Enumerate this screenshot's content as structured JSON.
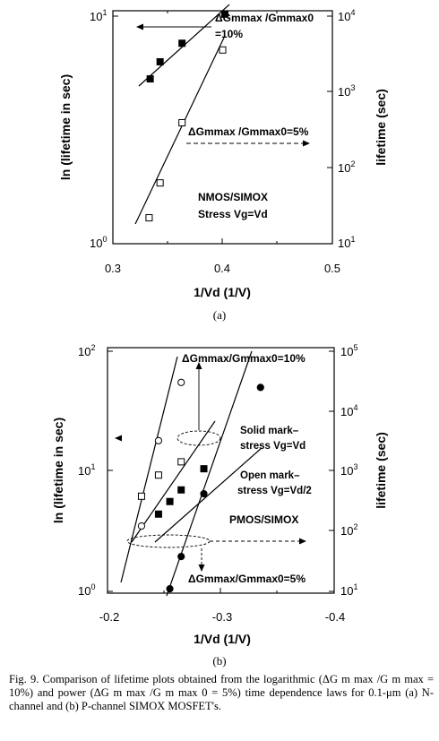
{
  "figure": {
    "panel_a": {
      "label": "(a)",
      "y_axis_left_label": "ln (lifetime in sec)",
      "y_axis_right_label": "lifetime (sec)",
      "x_axis_label": "1/Vd (1/V)",
      "annotation_top_line1": "ΔGmmax /Gmmax0",
      "annotation_top_line2": "=10%",
      "annotation_mid": "ΔGmmax /Gmmax0=5%",
      "device_label": "NMOS/SIMOX",
      "stress_label": "Stress Vg=Vd"
    },
    "panel_b": {
      "label": "(b)",
      "y_axis_left_label": "ln (lifetime in sec)",
      "y_axis_right_label": "lifetime (sec)",
      "x_axis_label": "1/Vd (1/V)",
      "annotation_top": "ΔGmmax/Gmmax0=10%",
      "annotation_bottom": "ΔGmmax/Gmmax0=5%",
      "solid_mark_line1": "Solid mark–",
      "solid_mark_line2": "stress Vg=Vd",
      "open_mark_line1": "Open mark–",
      "open_mark_line2": "stress Vg=Vd/2",
      "device_label": "PMOS/SIMOX"
    },
    "caption": "Fig. 9. Comparison of lifetime plots obtained from the logarithmic (ΔG m max /G m max = 10%) and power (ΔG m max /G m max 0 = 5%) time dependence laws for 0.1-μm (a) N-channel and (b) P-channel SIMOX MOSFET's."
  },
  "chart_data": [
    {
      "type": "scatter",
      "x_scale": "linear",
      "y_scale": "log",
      "xlim": [
        0.3,
        0.5
      ],
      "ylim_left": [
        1,
        10
      ],
      "ylim_right": [
        10,
        10000
      ],
      "x_ticks": [
        "0.3",
        "0.4",
        "0.5"
      ],
      "y_ticks_left": [
        "10^0",
        "10^1"
      ],
      "y_ticks_right": [
        "10^1",
        "10^2",
        "10^3",
        "10^4"
      ],
      "series": [
        {
          "marker": "filled-square",
          "x": [
            0.334,
            0.343,
            0.363,
            0.402
          ],
          "y": [
            5.3,
            6.3,
            7.6,
            10.2
          ]
        },
        {
          "marker": "open-square",
          "x": [
            0.333,
            0.343,
            0.363,
            0.4
          ],
          "y": [
            1.3,
            1.85,
            3.4,
            7.1
          ]
        }
      ]
    },
    {
      "type": "scatter",
      "x_scale": "linear",
      "y_scale": "log",
      "xlim": [
        -0.2,
        -0.4
      ],
      "ylim_left": [
        1,
        100
      ],
      "ylim_right": [
        10,
        100000
      ],
      "x_ticks": [
        "-0.2",
        "-0.3",
        "-0.4"
      ],
      "y_ticks_left": [
        "10^0",
        "10^1",
        "10^2"
      ],
      "y_ticks_right": [
        "10^1",
        "10^2",
        "10^3",
        "10^4",
        "10^5"
      ],
      "series": [
        {
          "marker": "open-circle",
          "x": [
            -0.23,
            -0.245,
            -0.265
          ],
          "y": [
            3.5,
            18,
            55
          ]
        },
        {
          "marker": "open-square",
          "x": [
            -0.23,
            -0.245,
            -0.265
          ],
          "y": [
            6.2,
            9.3,
            12
          ]
        },
        {
          "marker": "filled-square",
          "x": [
            -0.245,
            -0.255,
            -0.265,
            -0.285
          ],
          "y": [
            4.4,
            5.6,
            7,
            10.5
          ]
        },
        {
          "marker": "filled-circle",
          "x": [
            -0.255,
            -0.265,
            -0.285,
            -0.335
          ],
          "y": [
            1.05,
            1.95,
            6.5,
            50
          ]
        }
      ]
    }
  ]
}
